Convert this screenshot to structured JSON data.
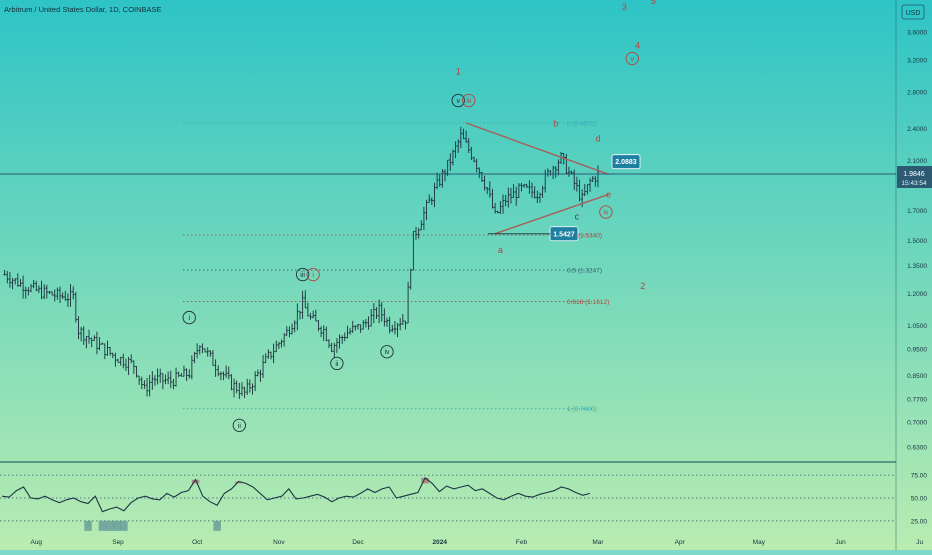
{
  "header": {
    "title": "Arbitrum / United States Dollar, 1D, COINBASE",
    "currency": "USD",
    "last_price": "1.9846",
    "countdown": "15:43:54"
  },
  "colors": {
    "bg_top": "#2ec4c6",
    "bg_bottom": "#b9ecb1",
    "candle": "#1b2f3a",
    "trendline": "#a85e59",
    "wave_red": "#b4443f",
    "fib_level": "#3aa7b8",
    "fib_level_dark": "#3c5c72",
    "callout": "#1f7fa1",
    "rsi_line": "#1d3545",
    "rsi_overbought": "#b26a68",
    "rsi_oversold": "#5a8e95"
  },
  "chart_data": {
    "type": "candlestick",
    "symbol": "Arbitrum / United States Dollar",
    "timeframe": "1D",
    "exchange": "COINBASE",
    "y_scale": "log",
    "ylim": [
      0.57,
      4.2
    ],
    "price_ticks": [
      "3.6000",
      "3.2000",
      "2.8000",
      "2.4000",
      "2.1000",
      "1.7000",
      "1.5000",
      "1.3500",
      "1.2000",
      "1.0500",
      "0.9500",
      "0.8500",
      "0.7700",
      "0.7000",
      "0.6300"
    ],
    "x_ticks": [
      "Aug",
      "Sep",
      "Oct",
      "Nov",
      "Dec",
      "2024",
      "Feb",
      "Mar",
      "Apr",
      "May",
      "Jun",
      "Ju"
    ],
    "close_series": [
      {
        "date": "2023-07-20",
        "close": 1.3
      },
      {
        "date": "2023-07-26",
        "close": 1.25
      },
      {
        "date": "2023-08-02",
        "close": 1.21
      },
      {
        "date": "2023-08-09",
        "close": 1.19
      },
      {
        "date": "2023-08-15",
        "close": 1.18
      },
      {
        "date": "2023-08-17",
        "close": 1.03
      },
      {
        "date": "2023-08-24",
        "close": 0.97
      },
      {
        "date": "2023-08-31",
        "close": 0.92
      },
      {
        "date": "2023-09-07",
        "close": 0.89
      },
      {
        "date": "2023-09-11",
        "close": 0.8
      },
      {
        "date": "2023-09-14",
        "close": 0.84
      },
      {
        "date": "2023-09-21",
        "close": 0.83
      },
      {
        "date": "2023-09-28",
        "close": 0.86
      },
      {
        "date": "2023-10-02",
        "close": 0.98
      },
      {
        "date": "2023-10-07",
        "close": 0.9
      },
      {
        "date": "2023-10-14",
        "close": 0.82
      },
      {
        "date": "2023-10-19",
        "close": 0.79
      },
      {
        "date": "2023-10-23",
        "close": 0.84
      },
      {
        "date": "2023-10-28",
        "close": 0.92
      },
      {
        "date": "2023-11-04",
        "close": 1.02
      },
      {
        "date": "2023-11-10",
        "close": 1.15
      },
      {
        "date": "2023-11-13",
        "close": 1.08
      },
      {
        "date": "2023-11-18",
        "close": 1.03
      },
      {
        "date": "2023-11-21",
        "close": 0.96
      },
      {
        "date": "2023-11-27",
        "close": 1.02
      },
      {
        "date": "2023-12-03",
        "close": 1.05
      },
      {
        "date": "2023-12-09",
        "close": 1.12
      },
      {
        "date": "2023-12-13",
        "close": 1.05
      },
      {
        "date": "2023-12-19",
        "close": 1.08
      },
      {
        "date": "2023-12-22",
        "close": 1.52
      },
      {
        "date": "2023-12-26",
        "close": 1.68
      },
      {
        "date": "2023-12-30",
        "close": 1.85
      },
      {
        "date": "2024-01-05",
        "close": 2.1
      },
      {
        "date": "2024-01-09",
        "close": 2.32
      },
      {
        "date": "2024-01-14",
        "close": 2.12
      },
      {
        "date": "2024-01-19",
        "close": 1.86
      },
      {
        "date": "2024-01-22",
        "close": 1.66
      },
      {
        "date": "2024-01-26",
        "close": 1.78
      },
      {
        "date": "2024-02-01",
        "close": 1.86
      },
      {
        "date": "2024-02-07",
        "close": 1.83
      },
      {
        "date": "2024-02-12",
        "close": 2.02
      },
      {
        "date": "2024-02-16",
        "close": 2.12
      },
      {
        "date": "2024-02-20",
        "close": 1.95
      },
      {
        "date": "2024-02-24",
        "close": 1.78
      },
      {
        "date": "2024-02-27",
        "close": 1.92
      },
      {
        "date": "2024-03-01",
        "close": 1.98
      }
    ],
    "fib_levels": [
      {
        "label": "0 (2.4572)",
        "price": 2.4572
      },
      {
        "label": "0.3 (1.5340)",
        "price": 1.534
      },
      {
        "label": "0.5 (1.3247)",
        "price": 1.3247
      },
      {
        "label": "0.618 (1.1612)",
        "price": 1.1612
      },
      {
        "label": "1 (0.7400)",
        "price": 0.74
      }
    ],
    "callouts": [
      {
        "text": "2.0883",
        "price": 2.0883
      },
      {
        "text": "1.5427",
        "price": 1.5427
      }
    ],
    "triangle": {
      "upper": [
        {
          "date": "2024-01-11",
          "price": 2.457
        },
        {
          "date": "2024-03-05",
          "price": 1.98
        }
      ],
      "lower": [
        {
          "date": "2024-01-22",
          "price": 1.543
        },
        {
          "date": "2024-03-05",
          "price": 1.82
        }
      ]
    },
    "wave_labels": [
      {
        "text": "1",
        "date": "2024-01-08",
        "price": 3.05,
        "style": "red"
      },
      {
        "text": "2",
        "date": "2024-03-18",
        "price": 1.24,
        "style": "red"
      },
      {
        "text": "3",
        "date": "2024-03-11",
        "price": 4.0,
        "style": "red"
      },
      {
        "text": "4",
        "date": "2024-03-16",
        "price": 3.4,
        "style": "red"
      },
      {
        "text": "5",
        "date": "2024-03-22",
        "price": 4.1,
        "style": "red"
      },
      {
        "text": "v",
        "date": "2024-03-14",
        "price": 3.22,
        "style": "red-circle"
      },
      {
        "text": "a",
        "date": "2024-01-24",
        "price": 1.44,
        "style": "red"
      },
      {
        "text": "b",
        "date": "2024-02-14",
        "price": 2.45,
        "style": "red"
      },
      {
        "text": "c",
        "date": "2024-02-22",
        "price": 1.66,
        "style": "dark"
      },
      {
        "text": "d",
        "date": "2024-03-01",
        "price": 2.3,
        "style": "red"
      },
      {
        "text": "e",
        "date": "2024-03-05",
        "price": 1.82,
        "style": "red"
      },
      {
        "text": "iv",
        "date": "2024-03-04",
        "price": 1.69,
        "style": "red-circle"
      },
      {
        "text": "v",
        "date": "2024-01-08",
        "price": 2.7,
        "style": "circle"
      },
      {
        "text": "iii",
        "date": "2024-01-12",
        "price": 2.7,
        "style": "red-circle"
      },
      {
        "text": "i",
        "date": "2023-09-28",
        "price": 1.085,
        "style": "circle"
      },
      {
        "text": "ii",
        "date": "2023-10-17",
        "price": 0.69,
        "style": "circle"
      },
      {
        "text": "iii",
        "date": "2023-11-10",
        "price": 1.3,
        "style": "circle"
      },
      {
        "text": "i",
        "date": "2023-11-14",
        "price": 1.3,
        "style": "red-circle"
      },
      {
        "text": "ii",
        "date": "2023-11-23",
        "price": 0.895,
        "style": "circle"
      },
      {
        "text": "iv",
        "date": "2023-12-12",
        "price": 0.94,
        "style": "circle"
      }
    ],
    "rsi": {
      "levels": [
        75,
        50,
        25
      ],
      "tick_labels": [
        "75.00",
        "50.00",
        "25.00"
      ],
      "values": [
        52,
        51,
        58,
        62,
        50,
        49,
        52,
        48,
        45,
        48,
        50,
        46,
        44,
        52,
        35,
        38,
        40,
        36,
        45,
        50,
        52,
        49,
        48,
        55,
        51,
        56,
        58,
        70,
        52,
        46,
        42,
        55,
        60,
        68,
        66,
        62,
        55,
        48,
        50,
        52,
        60,
        49,
        50,
        52,
        54,
        51,
        46,
        50,
        52,
        51,
        55,
        60,
        56,
        60,
        62,
        50,
        52,
        54,
        56,
        72,
        66,
        57,
        63,
        60,
        62,
        64,
        58,
        60,
        55,
        50,
        48,
        52,
        55,
        52,
        51,
        54,
        56,
        58,
        62,
        60,
        56,
        53,
        55
      ]
    }
  }
}
